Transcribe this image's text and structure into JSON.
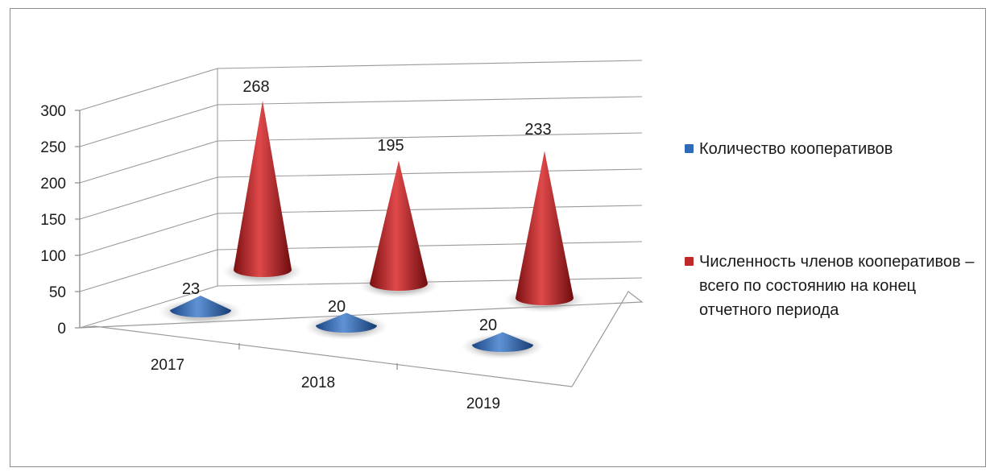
{
  "chart_data": {
    "type": "bar",
    "subtype": "3d-cone",
    "categories": [
      "2017",
      "2018",
      "2019"
    ],
    "series": [
      {
        "name": "Количество кооперативов",
        "values": [
          23,
          20,
          20
        ],
        "color": "#2f6bb8"
      },
      {
        "name": "Численность членов кооперативов – всего по состоянию на конец отчетного периода",
        "values": [
          268,
          195,
          233
        ],
        "color": "#c0282a"
      }
    ],
    "yticks": [
      "0",
      "50",
      "100",
      "150",
      "200",
      "250",
      "300"
    ],
    "ylim": [
      0,
      300
    ],
    "grid": true,
    "legend": "right",
    "data_labels": [
      [
        "23",
        "20",
        "20"
      ],
      [
        "268",
        "195",
        "233"
      ]
    ]
  }
}
